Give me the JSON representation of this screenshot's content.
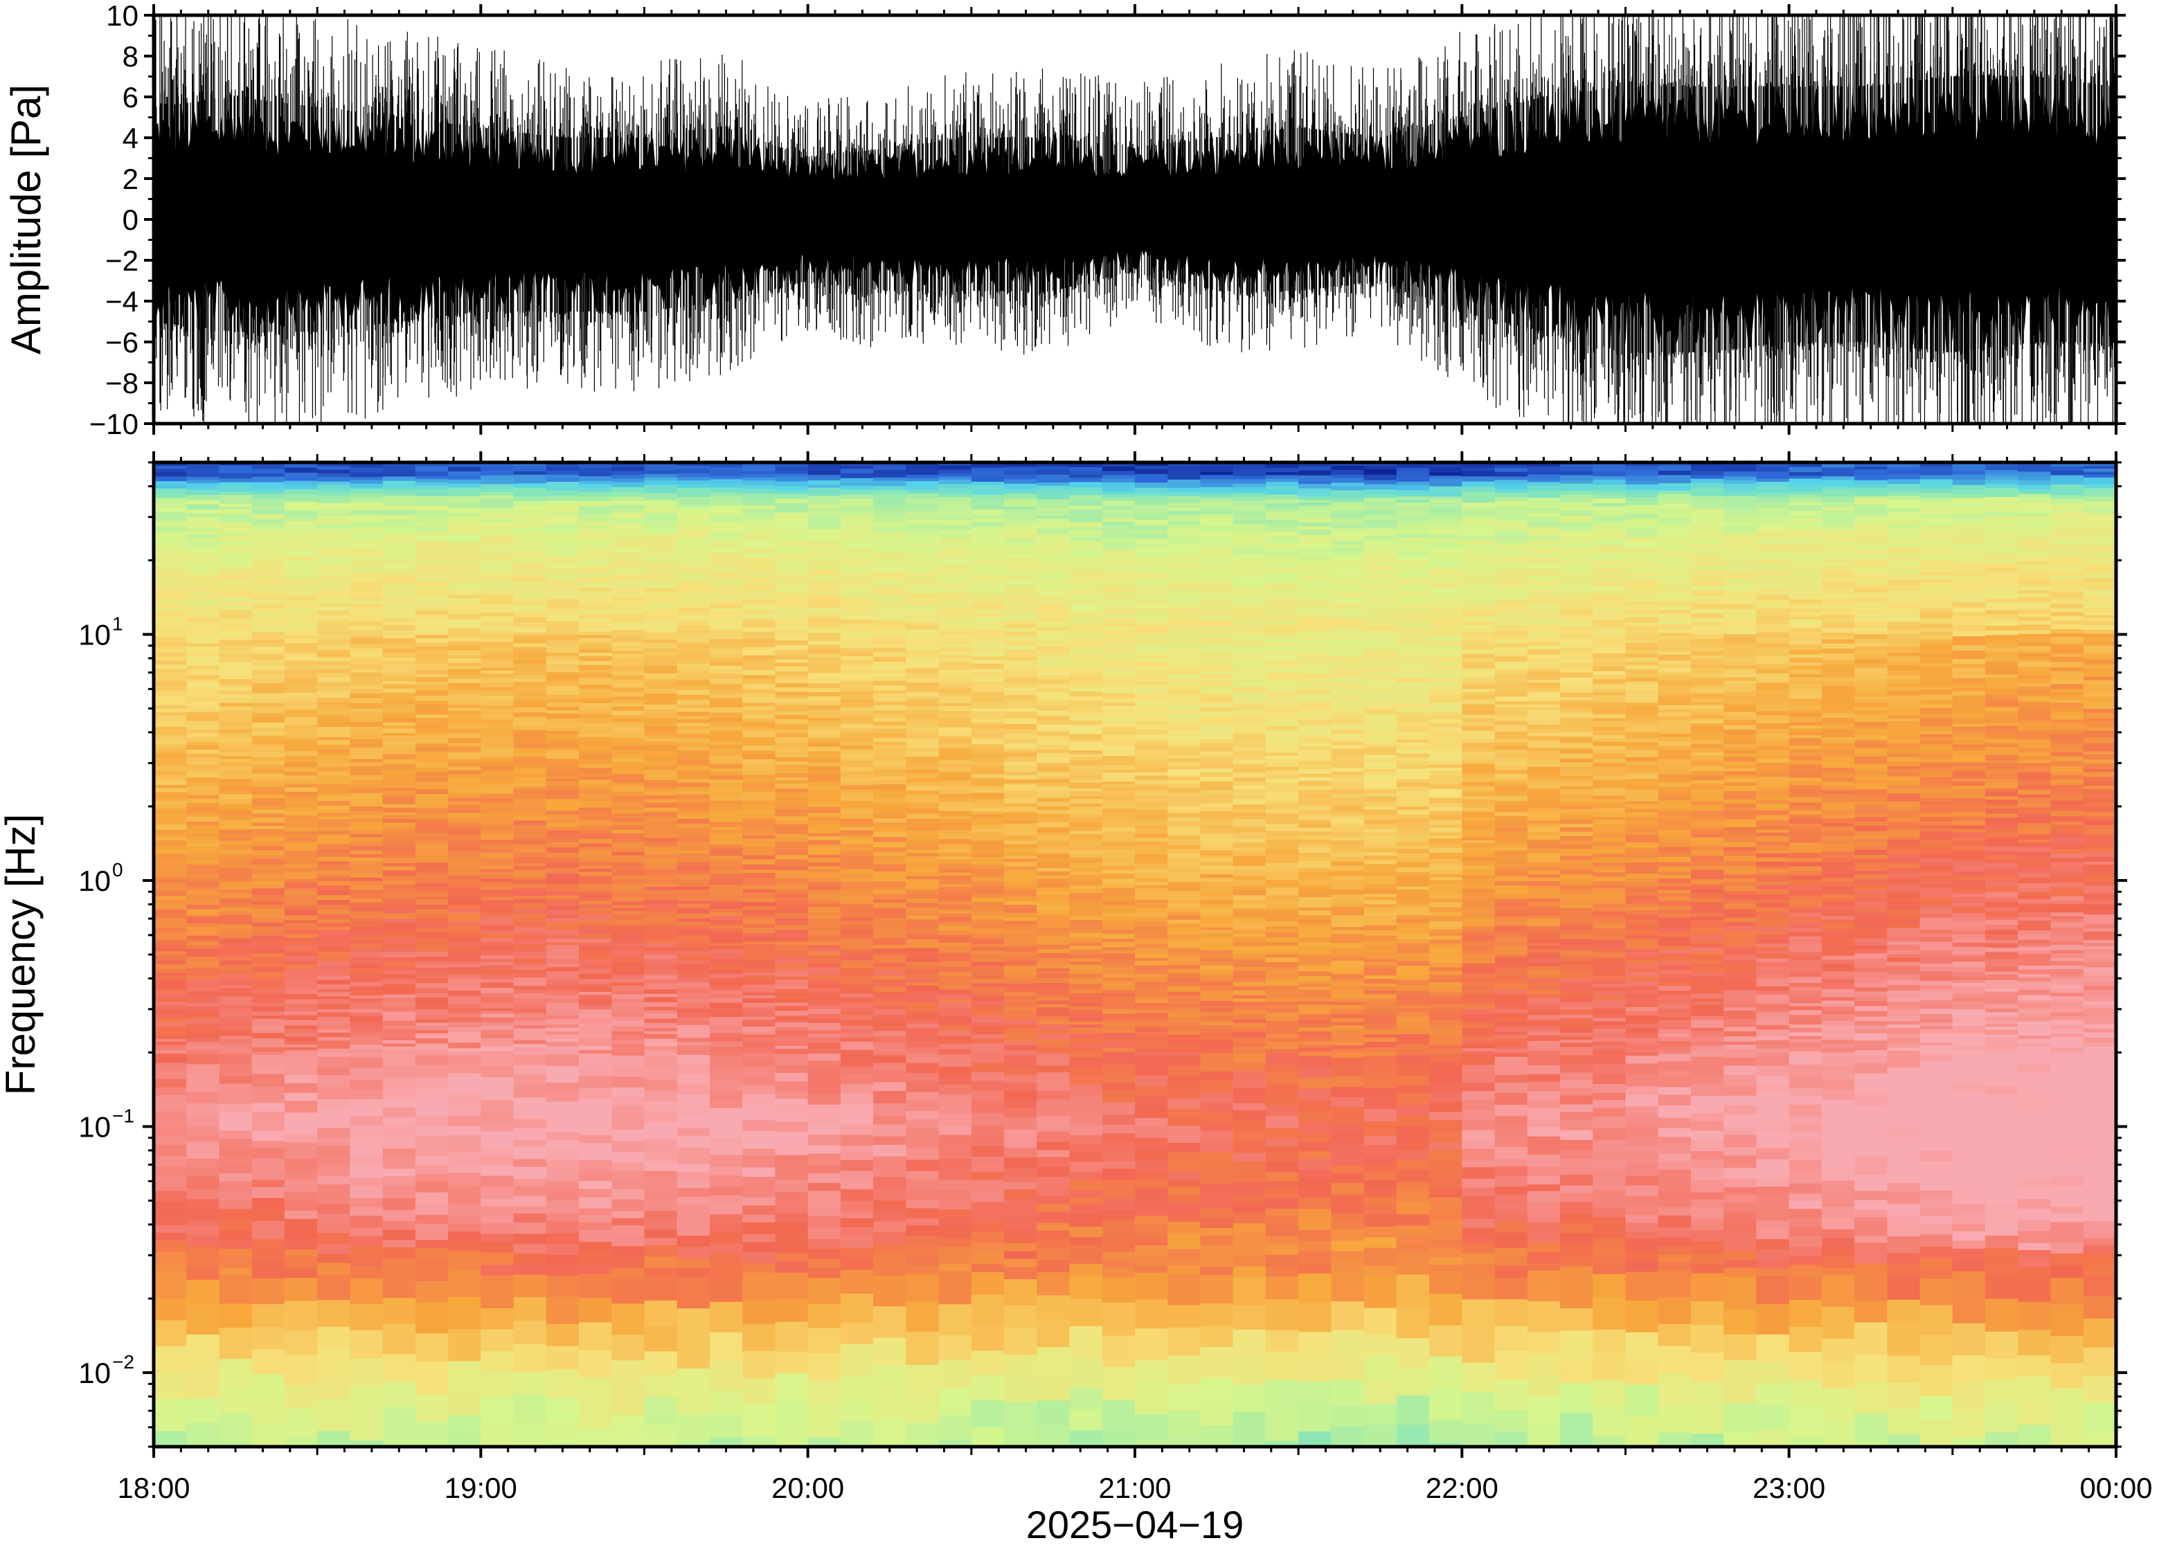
{
  "chart_data": [
    {
      "type": "line",
      "panel": "waveform",
      "ylabel": "Amplitude [Pa]",
      "ylim": [
        -10,
        10
      ],
      "yticks": [
        10,
        8,
        6,
        4,
        2,
        0,
        -2,
        -4,
        -6,
        -8,
        -10
      ],
      "ytick_labels": [
        "10",
        "8",
        "6",
        "4",
        "2",
        "0",
        "−2",
        "−4",
        "−6",
        "−8",
        "−10"
      ],
      "series": [
        {
          "x_hours": [
            18.0,
            18.25,
            18.5,
            18.75,
            19.0,
            19.25,
            19.5,
            19.75,
            20.0,
            20.25,
            20.5,
            20.75,
            21.0,
            21.25,
            21.5,
            21.75,
            22.0,
            22.25,
            22.5,
            22.75,
            23.0,
            23.25,
            23.5,
            23.75,
            24.0
          ],
          "envelope_upper": [
            5.5,
            6.0,
            5.5,
            5.0,
            4.5,
            4.0,
            4.0,
            4.5,
            3.0,
            3.5,
            4.0,
            4.0,
            3.5,
            4.0,
            4.5,
            4.0,
            5.0,
            6.0,
            6.5,
            6.5,
            6.5,
            6.5,
            7.0,
            7.0,
            6.5
          ],
          "envelope_lower": [
            -5.0,
            -5.5,
            -5.5,
            -5.0,
            -4.5,
            -4.5,
            -4.5,
            -4.0,
            -3.0,
            -3.5,
            -3.5,
            -3.5,
            -2.5,
            -3.5,
            -3.5,
            -3.0,
            -4.5,
            -5.5,
            -6.5,
            -6.5,
            -6.0,
            -6.0,
            -6.5,
            -6.0,
            -6.0
          ]
        }
      ],
      "grid": false
    },
    {
      "type": "heatmap",
      "panel": "spectrogram",
      "ylabel": "Frequency [Hz]",
      "yscale": "log",
      "ylim": [
        0.005,
        50
      ],
      "yticks": [
        0.01,
        0.1,
        1,
        10
      ],
      "ytick_labels": [
        {
          "base": "10",
          "exp": "−2"
        },
        {
          "base": "10",
          "exp": "−1"
        },
        {
          "base": "10",
          "exp": "0"
        },
        {
          "base": "10",
          "exp": "1"
        }
      ],
      "colormap": [
        "#0a1a8c",
        "#2f6ad8",
        "#56d3e8",
        "#86e6b8",
        "#d6f58c",
        "#f7e07a",
        "#f7a83c",
        "#f26852",
        "#f9aab0"
      ],
      "level_order": "low_to_high",
      "bands": [
        {
          "freq_hz": 45,
          "level": 0.08
        },
        {
          "freq_hz": 35,
          "level": 0.45
        },
        {
          "freq_hz": 20,
          "level": 0.55
        },
        {
          "freq_hz": 10,
          "level": 0.62
        },
        {
          "freq_hz": 3,
          "level": 0.7
        },
        {
          "freq_hz": 1,
          "level": 0.78
        },
        {
          "freq_hz": 0.3,
          "level": 0.87
        },
        {
          "freq_hz": 0.1,
          "level": 0.95
        },
        {
          "freq_hz": 0.05,
          "level": 0.9
        },
        {
          "freq_hz": 0.025,
          "level": 0.82
        },
        {
          "freq_hz": 0.015,
          "level": 0.68
        },
        {
          "freq_hz": 0.008,
          "level": 0.52
        },
        {
          "freq_hz": 0.005,
          "level": 0.45
        }
      ],
      "grid": false
    }
  ],
  "x_axis": {
    "ticks": [
      {
        "hour": 18,
        "label": "18:00"
      },
      {
        "hour": 19,
        "label": "19:00"
      },
      {
        "hour": 20,
        "label": "20:00"
      },
      {
        "hour": 21,
        "label": "21:00"
      },
      {
        "hour": 22,
        "label": "22:00"
      },
      {
        "hour": 23,
        "label": "23:00"
      },
      {
        "hour": 24,
        "label": "00:00"
      }
    ],
    "range_hours": [
      18,
      24
    ],
    "date_label": "2025−04−19"
  },
  "colors": {
    "waveform": "#000000",
    "frame": "#000000",
    "background": "#ffffff"
  }
}
